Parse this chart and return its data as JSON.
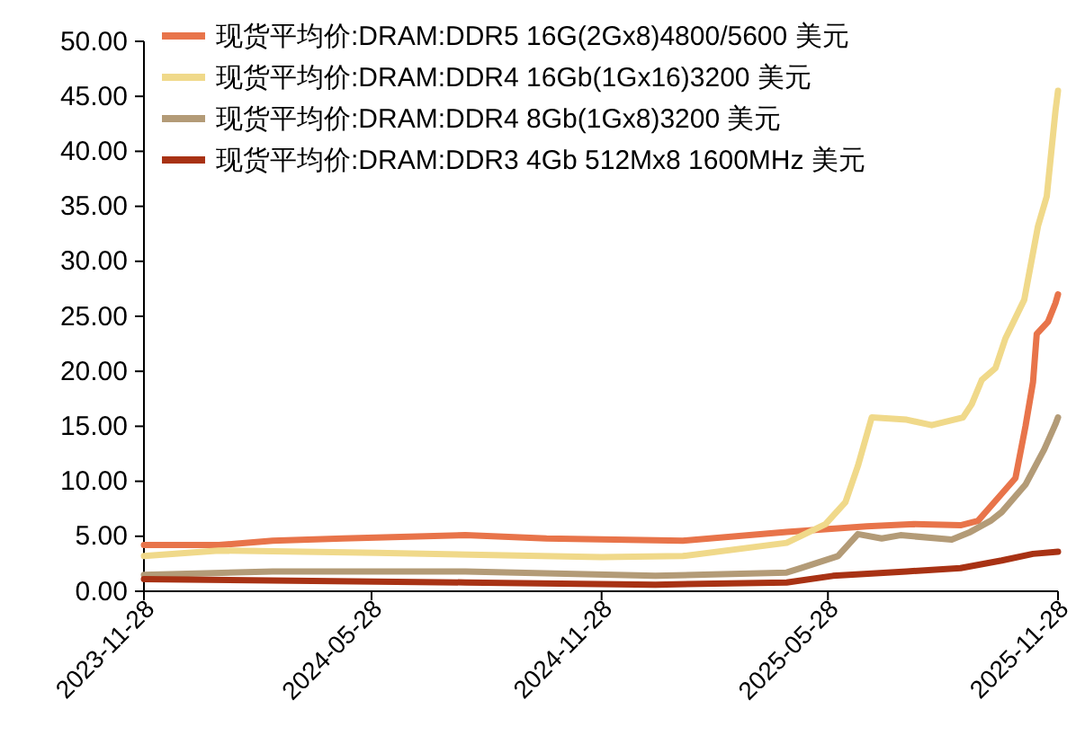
{
  "chart_data": {
    "type": "line",
    "xlim": [
      "2023-11-28",
      "2025-11-28"
    ],
    "xticks": [
      "2023-11-28",
      "2024-05-28",
      "2024-11-28",
      "2025-05-28",
      "2025-11-28"
    ],
    "ylim": [
      0,
      50
    ],
    "yticks": [
      {
        "value": 0,
        "label": "0.00"
      },
      {
        "value": 5,
        "label": "5.00"
      },
      {
        "value": 10,
        "label": "10.00"
      },
      {
        "value": 15,
        "label": "15.00"
      },
      {
        "value": 20,
        "label": "20.00"
      },
      {
        "value": 25,
        "label": "25.00"
      },
      {
        "value": 30,
        "label": "30.00"
      },
      {
        "value": 35,
        "label": "35.00"
      },
      {
        "value": 40,
        "label": "40.00"
      },
      {
        "value": 45,
        "label": "45.00"
      },
      {
        "value": 50,
        "label": "50.00"
      }
    ],
    "grid": false,
    "legend": "top left",
    "marker": "none",
    "line_style": "solid",
    "series": [
      {
        "name": "现货平均价:DRAM:DDR5 16G(2Gx8)4800/5600 美元",
        "color": "#e8744a",
        "x": [
          "2023-11-28",
          "2024-01-27",
          "2024-03-10",
          "2024-05-05",
          "2024-08-11",
          "2024-10-15",
          "2025-02-01",
          "2025-04-25",
          "2025-06-28",
          "2025-08-05",
          "2025-09-11",
          "2025-09-25",
          "2025-10-05",
          "2025-10-25",
          "2025-11-02",
          "2025-11-08",
          "2025-11-11",
          "2025-11-20",
          "2025-11-26",
          "2025-11-28"
        ],
        "values": [
          4.2,
          4.2,
          4.6,
          4.8,
          5.1,
          4.8,
          4.6,
          5.4,
          5.9,
          6.1,
          6.0,
          6.4,
          7.7,
          10.3,
          15,
          19,
          23.4,
          24.5,
          26.2,
          27
        ]
      },
      {
        "name": "现货平均价:DRAM:DDR4 16Gb(1Gx16)3200 美元",
        "color": "#f0d98a",
        "x": [
          "2023-11-28",
          "2024-01-27",
          "2024-06-01",
          "2024-11-28",
          "2025-02-01",
          "2025-04-25",
          "2025-05-26",
          "2025-06-11",
          "2025-06-21",
          "2025-07-02",
          "2025-07-30",
          "2025-08-19",
          "2025-09-13",
          "2025-09-20",
          "2025-09-28",
          "2025-10-09",
          "2025-10-17",
          "2025-11-01",
          "2025-11-12",
          "2025-11-19",
          "2025-11-26",
          "2025-11-28"
        ],
        "values": [
          3.2,
          3.7,
          3.5,
          3.1,
          3.2,
          4.4,
          6.1,
          8.1,
          11.4,
          15.8,
          15.6,
          15.1,
          15.8,
          17,
          19.2,
          20.3,
          23,
          26.5,
          33.2,
          35.9,
          43.7,
          45.5
        ]
      },
      {
        "name": "现货平均价:DRAM:DDR4 8Gb(1Gx8)3200 美元",
        "color": "#b39b77",
        "x": [
          "2023-11-28",
          "2024-03-10",
          "2024-08-11",
          "2025-01-10",
          "2025-04-25",
          "2025-05-06",
          "2025-06-05",
          "2025-06-21",
          "2025-07-10",
          "2025-07-25",
          "2025-09-04",
          "2025-09-19",
          "2025-10-05",
          "2025-10-14",
          "2025-11-02",
          "2025-11-17",
          "2025-11-26",
          "2025-11-28"
        ],
        "values": [
          1.5,
          1.8,
          1.8,
          1.4,
          1.7,
          2.1,
          3.2,
          5.2,
          4.8,
          5.1,
          4.7,
          5.4,
          6.4,
          7.2,
          9.7,
          12.9,
          15.2,
          15.8
        ]
      },
      {
        "name": "现货平均价:DRAM:DDR3 4Gb 512Mx8 1600MHz 美元",
        "color": "#a83214",
        "x": [
          "2023-11-28",
          "2024-08-11",
          "2025-01-10",
          "2025-04-25",
          "2025-06-01",
          "2025-07-30",
          "2025-09-11",
          "2025-10-14",
          "2025-11-08",
          "2025-11-28"
        ],
        "values": [
          1.1,
          0.8,
          0.6,
          0.8,
          1.4,
          1.8,
          2.1,
          2.8,
          3.4,
          3.6
        ]
      }
    ]
  }
}
